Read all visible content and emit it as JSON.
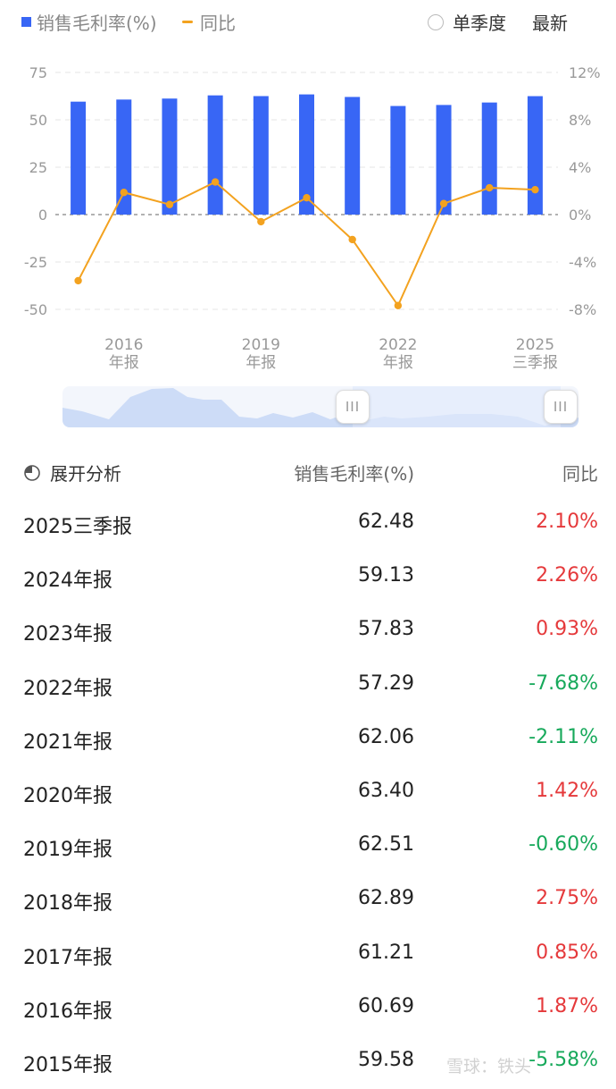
{
  "legend": {
    "bar_label": "销售毛利率(%)",
    "line_label": "同比",
    "option_single_quarter": "单季度",
    "option_latest": "最新"
  },
  "colors": {
    "bar": "#3866f5",
    "line": "#f3a21f",
    "positive": "#e5393b",
    "negative": "#17a95b"
  },
  "chart_data": {
    "type": "bar",
    "categories": [
      "2015年报",
      "2016年报",
      "2017年报",
      "2018年报",
      "2019年报",
      "2020年报",
      "2021年报",
      "2022年报",
      "2023年报",
      "2024年报",
      "2025三季报"
    ],
    "series": [
      {
        "name": "销售毛利率(%)",
        "type": "bar",
        "axis": "left",
        "values": [
          59.58,
          60.69,
          61.21,
          62.89,
          62.51,
          63.4,
          62.06,
          57.29,
          57.83,
          59.13,
          62.48
        ]
      },
      {
        "name": "同比",
        "type": "line",
        "axis": "right",
        "values": [
          -5.58,
          1.87,
          0.85,
          2.75,
          -0.6,
          1.42,
          -2.11,
          -7.68,
          0.93,
          2.26,
          2.1
        ]
      }
    ],
    "left_axis": {
      "ticks": [
        "75",
        "50",
        "25",
        "0",
        "-25",
        "-50"
      ],
      "ylim": [
        -50,
        75
      ]
    },
    "right_axis": {
      "ticks": [
        "12%",
        "8%",
        "4%",
        "0%",
        "-4%",
        "-8%"
      ],
      "ylim": [
        -8,
        12
      ]
    },
    "x_ticks": [
      {
        "index": 1,
        "line1": "2016",
        "line2": "年报"
      },
      {
        "index": 4,
        "line1": "2019",
        "line2": "年报"
      },
      {
        "index": 7,
        "line1": "2022",
        "line2": "年报"
      },
      {
        "index": 10,
        "line1": "2025",
        "line2": "三季报"
      }
    ],
    "grid": true
  },
  "slider": {
    "handle_glyph": "III"
  },
  "table": {
    "expand_label": "展开分析",
    "col_value": "销售毛利率(%)",
    "col_yoy": "同比",
    "rows": [
      {
        "period": "2025三季报",
        "value": "62.48",
        "yoy": "2.10%",
        "sign": "pos"
      },
      {
        "period": "2024年报",
        "value": "59.13",
        "yoy": "2.26%",
        "sign": "pos"
      },
      {
        "period": "2023年报",
        "value": "57.83",
        "yoy": "0.93%",
        "sign": "pos"
      },
      {
        "period": "2022年报",
        "value": "57.29",
        "yoy": "-7.68%",
        "sign": "neg"
      },
      {
        "period": "2021年报",
        "value": "62.06",
        "yoy": "-2.11%",
        "sign": "neg"
      },
      {
        "period": "2020年报",
        "value": "63.40",
        "yoy": "1.42%",
        "sign": "pos"
      },
      {
        "period": "2019年报",
        "value": "62.51",
        "yoy": "-0.60%",
        "sign": "neg"
      },
      {
        "period": "2018年报",
        "value": "62.89",
        "yoy": "2.75%",
        "sign": "pos"
      },
      {
        "period": "2017年报",
        "value": "61.21",
        "yoy": "0.85%",
        "sign": "pos"
      },
      {
        "period": "2016年报",
        "value": "60.69",
        "yoy": "1.87%",
        "sign": "pos"
      },
      {
        "period": "2015年报",
        "value": "59.58",
        "yoy": "-5.58%",
        "sign": "neg"
      }
    ]
  },
  "watermark": "雪球：铁头"
}
